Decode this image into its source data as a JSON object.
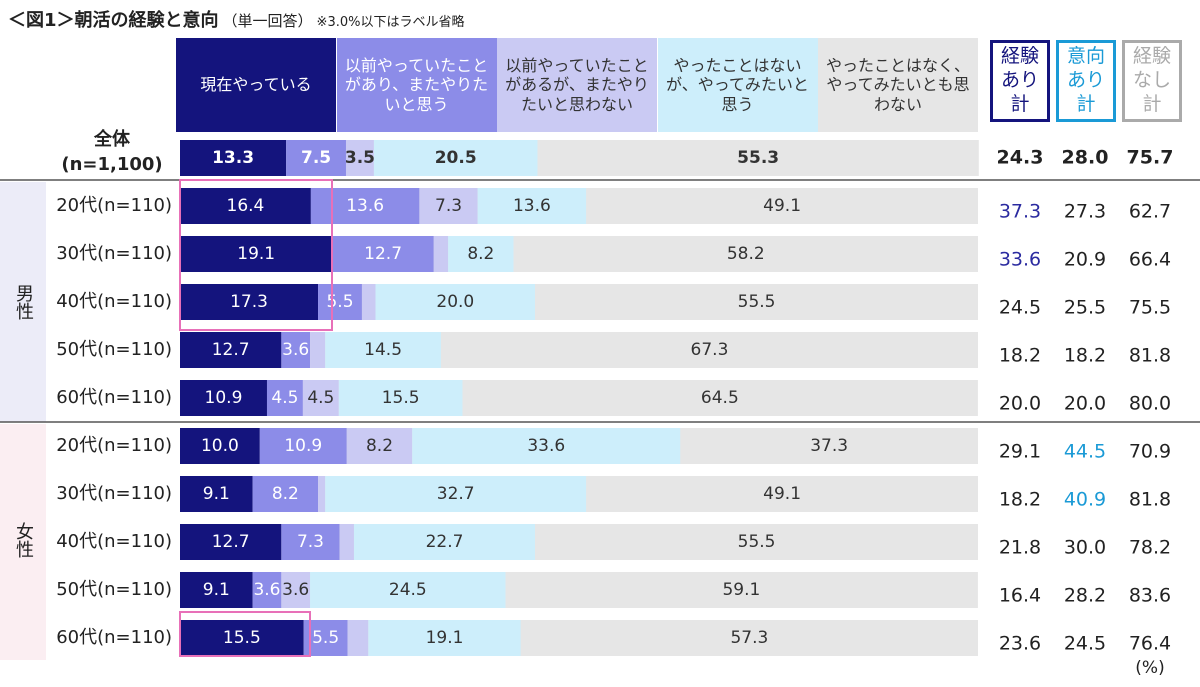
{
  "title": "＜図1＞朝活の経験と意向",
  "subtitle": "（単一回答）",
  "note": "※3.0%以下はラベル省略",
  "chart_data": {
    "type": "bar",
    "orientation": "horizontal",
    "stacked": true,
    "overall_label": "全体",
    "categories": [
      "(n=1,100)",
      "20代(n=110)",
      "30代(n=110)",
      "40代(n=110)",
      "50代(n=110)",
      "60代(n=110)",
      "20代(n=110)",
      "30代(n=110)",
      "40代(n=110)",
      "50代(n=110)",
      "60代(n=110)"
    ],
    "group_labels": [
      "男性",
      "女性"
    ],
    "xlim": [
      0,
      100
    ],
    "unit": "(%)",
    "series": [
      {
        "name": "現在やっている",
        "color": "#14147d",
        "text_color": "#ffffff",
        "values": [
          13.3,
          16.4,
          19.1,
          17.3,
          12.7,
          10.9,
          10.0,
          9.1,
          12.7,
          9.1,
          15.5
        ],
        "value_labels": [
          "13.3",
          "16.4",
          "19.1",
          "17.3",
          "12.7",
          "10.9",
          "10.0",
          "9.1",
          "12.7",
          "9.1",
          "15.5"
        ]
      },
      {
        "name": "以前やっていたことがあり、またやりたいと思う",
        "color": "#8c8ce8",
        "text_color": "#ffffff",
        "values": [
          7.5,
          13.6,
          12.7,
          5.5,
          3.6,
          4.5,
          10.9,
          8.2,
          7.3,
          3.6,
          5.5
        ],
        "value_labels": [
          "7.5",
          "13.6",
          "12.7",
          "5.5",
          "3.6",
          "4.5",
          "10.9",
          "8.2",
          "7.3",
          "3.6",
          "5.5"
        ]
      },
      {
        "name": "以前やっていたことがあるが、またやりたいと思わない",
        "color": "#cacaf3",
        "text_color": "#333333",
        "values": [
          3.5,
          7.3,
          1.8,
          1.7,
          1.9,
          4.5,
          8.2,
          0.9,
          1.8,
          3.6,
          2.6
        ],
        "value_labels": [
          "3.5",
          "7.3",
          null,
          null,
          null,
          "4.5",
          "8.2",
          null,
          null,
          "3.6",
          null
        ]
      },
      {
        "name": "やったことはないが、やってみたいと思う",
        "color": "#cdeefb",
        "text_color": "#333333",
        "values": [
          20.5,
          13.6,
          8.2,
          20.0,
          14.5,
          15.5,
          33.6,
          32.7,
          22.7,
          24.5,
          19.1
        ],
        "value_labels": [
          "20.5",
          "13.6",
          "8.2",
          "20.0",
          "14.5",
          "15.5",
          "33.6",
          "32.7",
          "22.7",
          "24.5",
          "19.1"
        ]
      },
      {
        "name": "やったことはなく、やってみたいとも思わない",
        "color": "#e6e6e6",
        "text_color": "#333333",
        "values": [
          55.3,
          49.1,
          58.2,
          55.5,
          67.3,
          64.5,
          37.3,
          49.1,
          55.5,
          59.1,
          57.3
        ],
        "value_labels": [
          "55.3",
          "49.1",
          "58.2",
          "55.5",
          "67.3",
          "64.5",
          "37.3",
          "49.1",
          "55.5",
          "59.1",
          "57.3"
        ]
      }
    ],
    "totals": {
      "headers": [
        {
          "text": "経験\nあり計",
          "color": "#14147d"
        },
        {
          "text": "意向\nあり計",
          "color": "#1a9ad6"
        },
        {
          "text": "経験\nなし計",
          "color": "#aaaaaa"
        }
      ],
      "rows": [
        [
          "24.3",
          "28.0",
          "75.7"
        ],
        [
          "37.3",
          "27.3",
          "62.7"
        ],
        [
          "33.6",
          "20.9",
          "66.4"
        ],
        [
          "24.5",
          "25.5",
          "75.5"
        ],
        [
          "18.2",
          "18.2",
          "81.8"
        ],
        [
          "20.0",
          "20.0",
          "80.0"
        ],
        [
          "29.1",
          "44.5",
          "70.9"
        ],
        [
          "18.2",
          "40.9",
          "81.8"
        ],
        [
          "21.8",
          "30.0",
          "78.2"
        ],
        [
          "16.4",
          "28.2",
          "83.6"
        ],
        [
          "23.6",
          "24.5",
          "76.4"
        ]
      ],
      "highlights": [
        {
          "row": 1,
          "col": 0,
          "color": "#2b2ba0"
        },
        {
          "row": 2,
          "col": 0,
          "color": "#2b2ba0"
        },
        {
          "row": 6,
          "col": 1,
          "color": "#1a9ad6"
        },
        {
          "row": 7,
          "col": 1,
          "color": "#1a9ad6"
        }
      ]
    }
  }
}
